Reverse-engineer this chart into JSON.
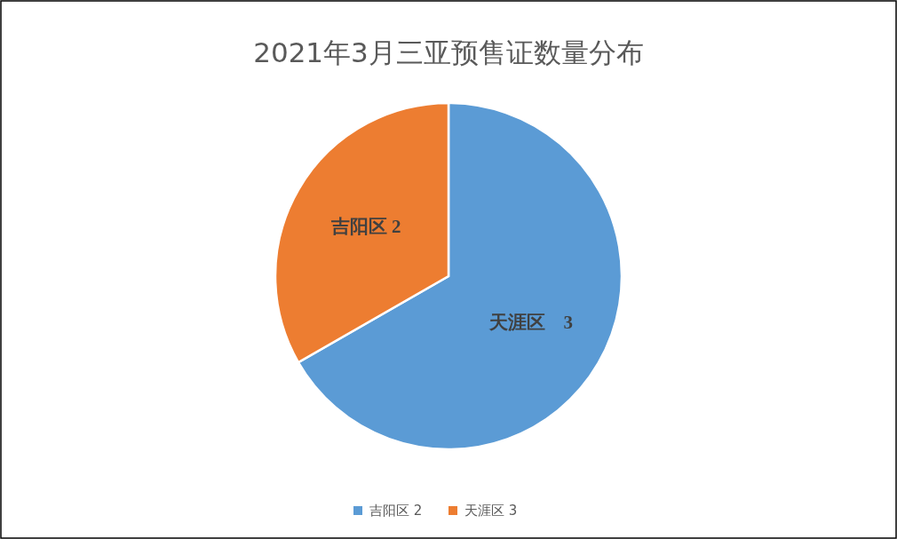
{
  "chart_data": {
    "type": "pie",
    "title": "2021年3月三亚预售证数量分布",
    "categories": [
      "吉阳区 2",
      "天涯区 3"
    ],
    "values": [
      66.7,
      33.3
    ],
    "colors": [
      "#5b9bd5",
      "#ed7d31"
    ],
    "legend": "bottom",
    "annotations": [
      "吉阳区 2",
      "天涯区    3"
    ]
  }
}
